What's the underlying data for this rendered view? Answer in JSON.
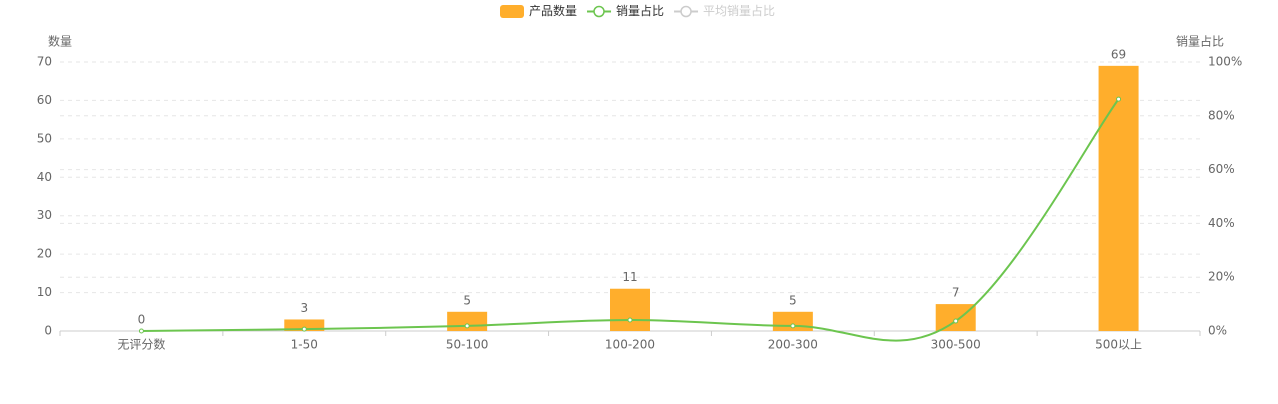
{
  "chart_data": {
    "type": "bar",
    "categories": [
      "无评分数",
      "1-50",
      "50-100",
      "100-200",
      "200-300",
      "300-500",
      "500以上"
    ],
    "y_label": "数量",
    "y2_label": "销量占比",
    "series": [
      {
        "name": "产品数量",
        "type": "bar",
        "color": "#ffae2c",
        "values": [
          0,
          3,
          5,
          11,
          5,
          7,
          69
        ]
      },
      {
        "name": "销量占比",
        "type": "line",
        "axis": "y2",
        "color": "#6cc54f",
        "values": [
          0,
          0.7,
          1.9,
          4.1,
          1.9,
          3.7,
          86.2
        ]
      },
      {
        "name": "平均销量占比",
        "type": "line",
        "axis": "y2",
        "color": "#cccccc",
        "visible": false
      }
    ],
    "ylim": [
      0,
      70
    ],
    "yticks": [
      0,
      10,
      20,
      30,
      40,
      50,
      60,
      70
    ],
    "y2lim": [
      0,
      100
    ],
    "y2ticks": [
      {
        "value": 0,
        "label": "0%"
      },
      {
        "value": 20,
        "label": "20%"
      },
      {
        "value": 40,
        "label": "40%"
      },
      {
        "value": 60,
        "label": "60%"
      },
      {
        "value": 80,
        "label": "80%"
      },
      {
        "value": 100,
        "label": "100%"
      }
    ],
    "grid": true
  }
}
